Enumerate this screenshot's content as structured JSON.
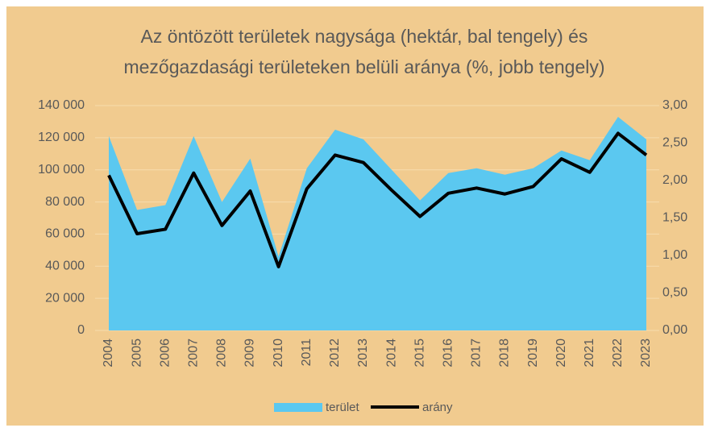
{
  "chart_data": {
    "type": "area-line",
    "title": [
      "Az öntözött területek nagysága (hektár, bal tengely) és",
      "mezőgazdasági területeken belüli aránya (%, jobb tengely)"
    ],
    "categories": [
      "2004",
      "2005",
      "2006",
      "2007",
      "2008",
      "2009",
      "2010",
      "2011",
      "2012",
      "2013",
      "2014",
      "2015",
      "2016",
      "2017",
      "2018",
      "2019",
      "2020",
      "2021",
      "2022",
      "2023"
    ],
    "series": [
      {
        "name": "terület",
        "type": "area",
        "color": "#5bc8f0",
        "axis": "y",
        "values": [
          121000,
          75000,
          78000,
          121000,
          80000,
          107000,
          46000,
          101000,
          125000,
          119000,
          100000,
          81000,
          98000,
          101000,
          97000,
          101000,
          112000,
          106000,
          133000,
          119000
        ]
      },
      {
        "name": "arány",
        "type": "line",
        "color": "#000000",
        "axis": "y2",
        "values": [
          2.07,
          1.29,
          1.35,
          2.1,
          1.4,
          1.86,
          0.85,
          1.89,
          2.34,
          2.24,
          1.87,
          1.52,
          1.83,
          1.9,
          1.82,
          1.92,
          2.29,
          2.11,
          2.63,
          2.34
        ]
      }
    ],
    "ylim": [
      0,
      140000
    ],
    "yticks": [
      0,
      {
        "value": 20000,
        "label": "20 000"
      },
      {
        "value": 40000,
        "label": "40 000"
      },
      {
        "value": 60000,
        "label": "60 000"
      },
      {
        "value": 80000,
        "label": "80 000"
      },
      {
        "value": 100000,
        "label": "100 000"
      },
      {
        "value": 120000,
        "label": "120 000"
      },
      {
        "value": 140000,
        "label": "140 000"
      }
    ],
    "y2lim": [
      0,
      3
    ],
    "y2ticks": [
      {
        "value": 0,
        "label": "0,00"
      },
      {
        "value": 0.5,
        "label": "0,50"
      },
      {
        "value": 1,
        "label": "1,00"
      },
      {
        "value": 1.5,
        "label": "1,50"
      },
      {
        "value": 2,
        "label": "2,00"
      },
      {
        "value": 2.5,
        "label": "2,50"
      },
      {
        "value": 3,
        "label": "3,00"
      }
    ],
    "grid": true,
    "legend": "bottom"
  }
}
